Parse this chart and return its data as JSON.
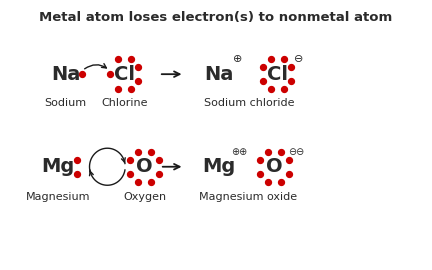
{
  "title": "Metal atom loses electron(s) to nonmetal atom",
  "bg_color": "#ffffff",
  "dot_color": "#cc0000",
  "text_color": "#2b2b2b",
  "arrow_color": "#1a1a1a",
  "title_fontsize": 9.5,
  "label_fontsize": 8,
  "symbol_fontsize": 14,
  "charge_fontsize": 7,
  "figsize": [
    4.32,
    2.7
  ],
  "dpi": 100,
  "xlim": [
    0,
    8
  ],
  "ylim": [
    0,
    5
  ]
}
